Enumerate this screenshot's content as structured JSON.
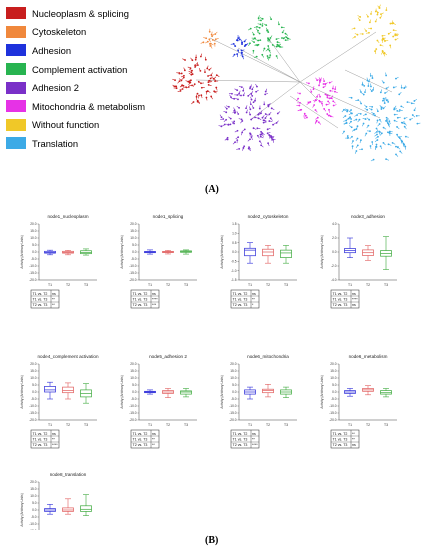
{
  "panel_a": {
    "label": "(A)",
    "legend": [
      {
        "label": "Nucleoplasm & splicing",
        "color": "#c81e1e"
      },
      {
        "label": "Cytoskeleton",
        "color": "#f0883c"
      },
      {
        "label": "Adhesion",
        "color": "#1e32dc"
      },
      {
        "label": "Complement activation",
        "color": "#28b450"
      },
      {
        "label": "Adhesion 2",
        "color": "#7a30c8"
      },
      {
        "label": "Mitochondria & metabolism",
        "color": "#e632e6"
      },
      {
        "label": "Without function",
        "color": "#f0c828"
      },
      {
        "label": "Translation",
        "color": "#3caae6"
      }
    ]
  },
  "panel_b": {
    "label": "(B)",
    "ylabel": "Activity (Arbitrary Units)",
    "group_colors": [
      "#2a2ad8",
      "#e05a5a",
      "#3aa83a"
    ],
    "plots": [
      {
        "title": "node1_nucleoplasm",
        "ylim": [
          -20,
          20
        ],
        "yticks": [
          "20.0",
          "15.0",
          "10.0",
          "5.0",
          "0.0",
          "-5.0",
          "-10.0",
          "-15.0",
          "-20.0"
        ],
        "groups": [
          {
            "name": "T1",
            "min": -2.0,
            "q1": -0.8,
            "median": -0.3,
            "q3": 0.5,
            "max": 1.3
          },
          {
            "name": "T2",
            "min": -2.0,
            "q1": -0.8,
            "median": -0.2,
            "q3": 0.5,
            "max": 1.2
          },
          {
            "name": "T3",
            "min": -2.2,
            "q1": -1.2,
            "median": -0.3,
            "q3": 0.9,
            "max": 2.2
          }
        ],
        "stats": [
          [
            "T1 vs. T2",
            "ns"
          ],
          [
            "T1 vs. T3",
            "**"
          ],
          [
            "T2 vs. T3",
            "**"
          ]
        ]
      },
      {
        "title": "node1_splicing",
        "ylim": [
          -20,
          20
        ],
        "yticks": [
          "20.0",
          "15.0",
          "10.0",
          "5.0",
          "0.0",
          "-5.0",
          "-10.0",
          "-15.0",
          "-20.0"
        ],
        "groups": [
          {
            "name": "T1",
            "min": -1.5,
            "q1": -0.5,
            "median": 0.0,
            "q3": 0.4,
            "max": 1.5
          },
          {
            "name": "T2",
            "min": -1.4,
            "q1": -0.4,
            "median": 0.0,
            "q3": 0.4,
            "max": 1.2
          },
          {
            "name": "T3",
            "min": -1.5,
            "q1": -0.2,
            "median": 0.3,
            "q3": 0.8,
            "max": 1.5
          }
        ],
        "stats": [
          [
            "T1 vs. T2",
            "ns"
          ],
          [
            "T1 vs. T3",
            "****"
          ],
          [
            "T2 vs. T3",
            "***"
          ]
        ]
      },
      {
        "title": "node2_cytoskeleton",
        "ylim": [
          -1.5,
          1.5
        ],
        "yticks": [
          "1.5",
          "1.0",
          "0.5",
          "0.0",
          "-0.5",
          "-1.0",
          "-1.5"
        ],
        "groups": [
          {
            "name": "T1",
            "min": -0.6,
            "q1": -0.2,
            "median": 0.1,
            "q3": 0.2,
            "max": 0.5
          },
          {
            "name": "T2",
            "min": -0.6,
            "q1": -0.2,
            "median": 0.0,
            "q3": 0.15,
            "max": 0.35
          },
          {
            "name": "T3",
            "min": -0.6,
            "q1": -0.3,
            "median": -0.05,
            "q3": 0.1,
            "max": 0.35
          }
        ],
        "stats": [
          [
            "T1 vs. T2",
            "ns"
          ],
          [
            "T1 vs. T3",
            "**"
          ],
          [
            "T2 vs. T3",
            "*"
          ]
        ]
      },
      {
        "title": "node3_adhesion",
        "ylim": [
          -4,
          4
        ],
        "yticks": [
          "4.0",
          "2.0",
          "0.0",
          "-2.0",
          "-4.0"
        ],
        "groups": [
          {
            "name": "T1",
            "min": -0.8,
            "q1": -0.1,
            "median": 0.2,
            "q3": 0.5,
            "max": 2.0
          },
          {
            "name": "T2",
            "min": -1.2,
            "q1": -0.5,
            "median": -0.1,
            "q3": 0.3,
            "max": 0.9
          },
          {
            "name": "T3",
            "min": -2.5,
            "q1": -0.6,
            "median": -0.2,
            "q3": 0.2,
            "max": 2.2
          }
        ],
        "stats": [
          [
            "T1 vs. T2",
            "ns"
          ],
          [
            "T1 vs. T3",
            "****"
          ],
          [
            "T2 vs. T3",
            "ns"
          ]
        ]
      },
      {
        "title": "node4_complement activation",
        "ylim": [
          -20,
          20
        ],
        "yticks": [
          "20.0",
          "15.0",
          "10.0",
          "5.0",
          "0.0",
          "-5.0",
          "-10.0",
          "-15.0",
          "-20.0"
        ],
        "groups": [
          {
            "name": "T1",
            "min": -5.0,
            "q1": 0.0,
            "median": 1.5,
            "q3": 4.0,
            "max": 7.0
          },
          {
            "name": "T2",
            "min": -5.0,
            "q1": -0.5,
            "median": 1.0,
            "q3": 3.5,
            "max": 6.5
          },
          {
            "name": "T3",
            "min": -8.0,
            "q1": -3.5,
            "median": -1.0,
            "q3": 1.5,
            "max": 6.0
          }
        ],
        "stats": [
          [
            "T1 vs. T2",
            "ns"
          ],
          [
            "T1 vs. T3",
            "**"
          ],
          [
            "T2 vs. T3",
            "****"
          ]
        ]
      },
      {
        "title": "node5_adhesion 2",
        "ylim": [
          -20,
          20
        ],
        "yticks": [
          "20.0",
          "15.0",
          "10.0",
          "5.0",
          "0.0",
          "-5.0",
          "-10.0",
          "-15.0",
          "-20.0"
        ],
        "groups": [
          {
            "name": "T1",
            "min": -1.5,
            "q1": -0.5,
            "median": 0.0,
            "q3": 0.5,
            "max": 1.5
          },
          {
            "name": "T2",
            "min": -4.0,
            "q1": -1.0,
            "median": 0.0,
            "q3": 1.0,
            "max": 2.5
          },
          {
            "name": "T3",
            "min": -3.5,
            "q1": -1.5,
            "median": 0.0,
            "q3": 0.8,
            "max": 2.5
          }
        ],
        "stats": [
          [
            "T1 vs. T2",
            "ns"
          ],
          [
            "T1 vs. T3",
            "**"
          ],
          [
            "T2 vs. T3",
            "**"
          ]
        ]
      },
      {
        "title": "node6_mitochondria",
        "ylim": [
          -20,
          20
        ],
        "yticks": [
          "20.0",
          "15.0",
          "10.0",
          "5.0",
          "0.0",
          "-5.0",
          "-10.0",
          "-15.0",
          "-20.0"
        ],
        "groups": [
          {
            "name": "T1",
            "min": -5.0,
            "q1": -1.5,
            "median": 0.0,
            "q3": 1.5,
            "max": 3.5
          },
          {
            "name": "T2",
            "min": -3.5,
            "q1": -0.5,
            "median": 1.0,
            "q3": 2.0,
            "max": 5.5
          },
          {
            "name": "T3",
            "min": -4.0,
            "q1": -1.5,
            "median": 0.0,
            "q3": 1.5,
            "max": 3.5
          }
        ],
        "stats": [
          [
            "T1 vs. T2",
            "ns"
          ],
          [
            "T1 vs. T3",
            "**"
          ],
          [
            "T2 vs. T3",
            "****"
          ]
        ]
      },
      {
        "title": "node6_metabolism",
        "ylim": [
          -20,
          20
        ],
        "yticks": [
          "20.0",
          "15.0",
          "10.0",
          "5.0",
          "0.0",
          "-5.0",
          "-10.0",
          "-15.0",
          "-20.0"
        ],
        "groups": [
          {
            "name": "T1",
            "min": -3.0,
            "q1": -1.0,
            "median": 0.0,
            "q3": 1.0,
            "max": 2.5
          },
          {
            "name": "T2",
            "min": -2.0,
            "q1": 0.5,
            "median": 1.5,
            "q3": 2.5,
            "max": 4.5
          },
          {
            "name": "T3",
            "min": -3.5,
            "q1": -1.5,
            "median": -0.5,
            "q3": 1.0,
            "max": 2.5
          }
        ],
        "stats": [
          [
            "T1 vs. T2",
            "**"
          ],
          [
            "T1 vs. T3",
            "**"
          ],
          [
            "T2 vs. T3",
            "ns"
          ]
        ]
      },
      {
        "title": "node8_translation",
        "ylim": [
          -20,
          20
        ],
        "yticks": [
          "20.0",
          "15.0",
          "10.0",
          "5.0",
          "0.0",
          "-5.0",
          "-10.0",
          "-15.0",
          "-20.0"
        ],
        "groups": [
          {
            "name": "T1",
            "min": -3.0,
            "q1": -1.0,
            "median": 0.0,
            "q3": 1.0,
            "max": 4.0
          },
          {
            "name": "T2",
            "min": -3.0,
            "q1": -1.0,
            "median": 0.0,
            "q3": 1.5,
            "max": 8.0
          },
          {
            "name": "T3",
            "min": -4.0,
            "q1": -1.0,
            "median": 0.5,
            "q3": 3.0,
            "max": 11.0
          }
        ],
        "stats": [
          [
            "T1 vs. T2",
            "ns"
          ],
          [
            "T1 vs. T3",
            "****"
          ],
          [
            "T2 vs. T3",
            "ns"
          ]
        ]
      }
    ]
  }
}
